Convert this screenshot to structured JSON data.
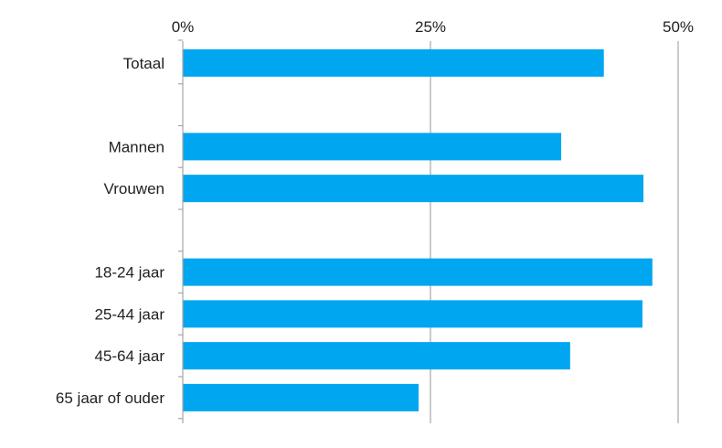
{
  "chart_data": {
    "type": "bar",
    "orientation": "horizontal",
    "categories": [
      "Totaal",
      "",
      "Mannen",
      "Vrouwen",
      "",
      "18-24 jaar",
      "25-44 jaar",
      "45-64 jaar",
      "65 jaar of ouder"
    ],
    "values": [
      42.5,
      null,
      38.2,
      46.5,
      null,
      47.4,
      46.4,
      39.1,
      23.8
    ],
    "xlim": [
      0,
      50
    ],
    "x_ticks": [
      "0%",
      "25%",
      "50%"
    ],
    "x_tick_values": [
      0,
      25,
      50
    ],
    "xaxis_position": "top",
    "grid": true,
    "legend": "none",
    "bar_color": "#00a6f0",
    "grid_color": "#a6a6a6",
    "title": "",
    "xlabel": "",
    "ylabel": ""
  }
}
